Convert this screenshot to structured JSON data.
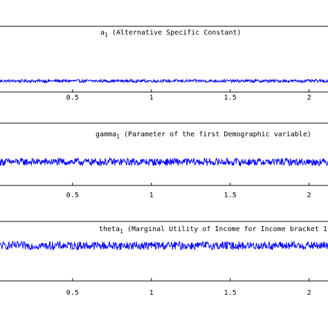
{
  "chart_data": [
    {
      "type": "line",
      "title": "a",
      "title_sub": "1",
      "title_rest": " (Alternative Specific Constant)",
      "xticks": [
        0.5,
        1,
        1.5,
        2
      ],
      "xtick_labels": [
        "0.5",
        "1",
        "1.5",
        "2"
      ],
      "xlim": [
        0.04,
        2.12
      ],
      "ylim": [
        -1,
        1
      ],
      "series": [
        {
          "color": "#0000ff",
          "noise_amplitude": 0.07
        }
      ],
      "grid": false
    },
    {
      "type": "line",
      "title": "gamma",
      "title_sub": "1",
      "title_rest": " (Parameter of the first Demographic variable)",
      "xticks": [
        0.5,
        1,
        1.5,
        2
      ],
      "xtick_labels": [
        "0.5",
        "1",
        "1.5",
        "2"
      ],
      "xlim": [
        0.04,
        2.12
      ],
      "ylim": [
        -1,
        1
      ],
      "series": [
        {
          "color": "#0000ff",
          "noise_amplitude": 0.18
        }
      ],
      "grid": false
    },
    {
      "type": "line",
      "title": "theta",
      "title_sub": "1",
      "title_rest": " (Marginal Utility of Income for Income bracket 1)",
      "xticks": [
        0.5,
        1,
        1.5,
        2
      ],
      "xtick_labels": [
        "0.5",
        "1",
        "1.5",
        "2"
      ],
      "xlim": [
        0.04,
        2.12
      ],
      "ylim": [
        -1,
        1
      ],
      "series": [
        {
          "color": "#0000ff",
          "noise_amplitude": 0.2
        }
      ],
      "grid": false
    }
  ]
}
